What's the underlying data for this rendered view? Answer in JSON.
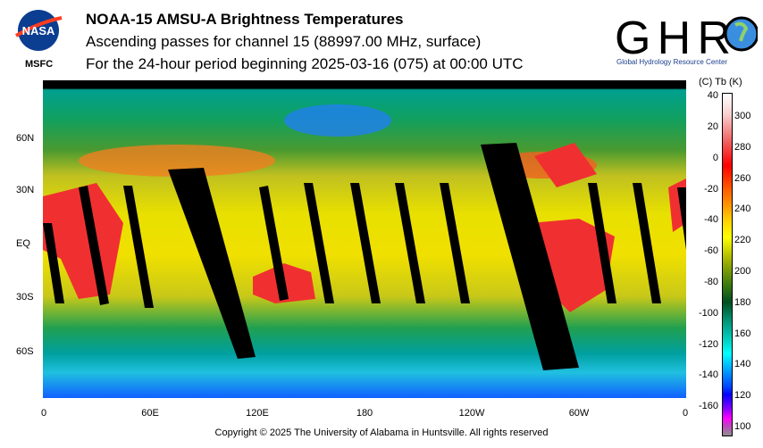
{
  "header": {
    "title": "NOAA-15 AMSU-A Brightness Temperatures",
    "subtitle": "Ascending passes for channel 15 (88997.00 MHz, surface)",
    "period": "For the 24-hour period beginning 2025-03-16 (075) at 00:00 UTC"
  },
  "logos": {
    "nasa": "NASA",
    "msfc": "MSFC",
    "ghrc": "GHRC",
    "ghrc_full": "Global Hydrology Resource Center"
  },
  "map": {
    "lat_labels": [
      "60N",
      "30N",
      "EQ",
      "30S",
      "60S"
    ],
    "lon_labels": [
      "0",
      "60E",
      "120E",
      "180",
      "120W",
      "60W",
      "0"
    ]
  },
  "colorbar": {
    "header": "(C)  Tb  (K)",
    "celsius": [
      "40",
      "20",
      "0",
      "-20",
      "-40",
      "-60",
      "-80",
      "-100",
      "-120",
      "-140",
      "-160"
    ],
    "kelvin": [
      "300",
      "280",
      "260",
      "240",
      "220",
      "200",
      "180",
      "160",
      "140",
      "120",
      "100"
    ],
    "range_k": [
      97,
      315
    ]
  },
  "footer": {
    "copyright": "Copyright © 2025 The University of Alabama in Huntsville.  All rights reserved"
  }
}
